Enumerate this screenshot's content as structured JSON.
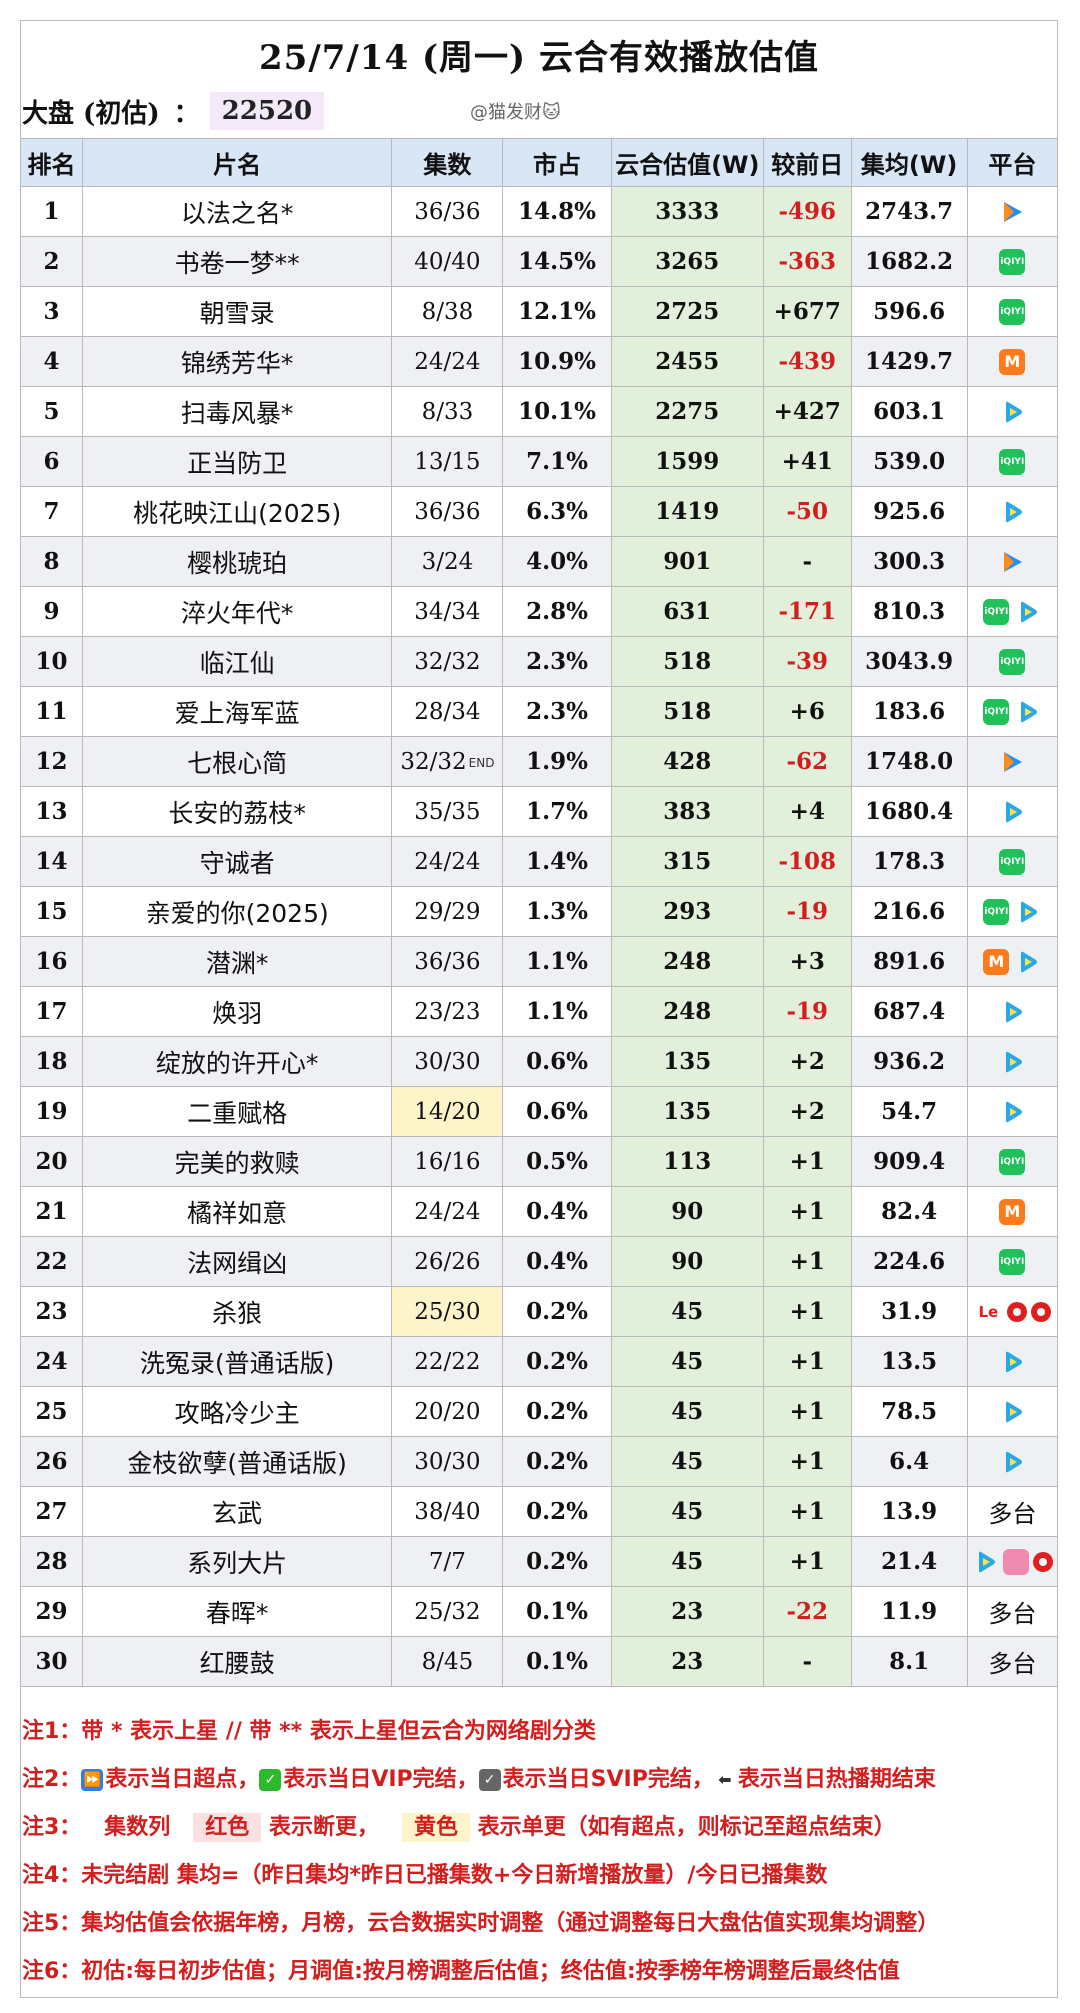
{
  "title": "25/7/14 (周一) 云合有效播放估值",
  "market_label": "大盘 (初估)",
  "market_sep": "：",
  "market_value": "22520",
  "watermark": "@猫发财🐱",
  "headers": [
    "排名",
    "片名",
    "集数",
    "市占",
    "云合估值(W)",
    "较前日",
    "集均(W)",
    "平台"
  ],
  "rows": [
    {
      "rank": "1",
      "name": "以法之名*",
      "eps": "36/36",
      "share": "14.8%",
      "est": "3333",
      "chg": "-496",
      "avg": "2743.7",
      "platforms": [
        "tencent"
      ]
    },
    {
      "rank": "2",
      "name": "书卷一梦**",
      "eps": "40/40",
      "share": "14.5%",
      "est": "3265",
      "chg": "-363",
      "avg": "1682.2",
      "platforms": [
        "iqiyi"
      ]
    },
    {
      "rank": "3",
      "name": "朝雪录",
      "eps": "8/38",
      "share": "12.1%",
      "est": "2725",
      "chg": "+677",
      "avg": "596.6",
      "platforms": [
        "iqiyi"
      ]
    },
    {
      "rank": "4",
      "name": "锦绣芳华*",
      "eps": "24/24",
      "share": "10.9%",
      "est": "2455",
      "chg": "-439",
      "avg": "1429.7",
      "platforms": [
        "mango"
      ]
    },
    {
      "rank": "5",
      "name": "扫毒风暴*",
      "eps": "8/33",
      "share": "10.1%",
      "est": "2275",
      "chg": "+427",
      "avg": "603.1",
      "platforms": [
        "youku"
      ]
    },
    {
      "rank": "6",
      "name": "正当防卫",
      "eps": "13/15",
      "share": "7.1%",
      "est": "1599",
      "chg": "+41",
      "avg": "539.0",
      "platforms": [
        "iqiyi"
      ]
    },
    {
      "rank": "7",
      "name": "桃花映江山(2025)",
      "eps": "36/36",
      "share": "6.3%",
      "est": "1419",
      "chg": "-50",
      "avg": "925.6",
      "platforms": [
        "youku"
      ]
    },
    {
      "rank": "8",
      "name": "樱桃琥珀",
      "eps": "3/24",
      "share": "4.0%",
      "est": "901",
      "chg": "-",
      "avg": "300.3",
      "platforms": [
        "tencent"
      ]
    },
    {
      "rank": "9",
      "name": "淬火年代*",
      "eps": "34/34",
      "share": "2.8%",
      "est": "631",
      "chg": "-171",
      "avg": "810.3",
      "platforms": [
        "iqiyi",
        "youku"
      ]
    },
    {
      "rank": "10",
      "name": "临江仙",
      "eps": "32/32",
      "share": "2.3%",
      "est": "518",
      "chg": "-39",
      "avg": "3043.9",
      "platforms": [
        "iqiyi"
      ]
    },
    {
      "rank": "11",
      "name": "爱上海军蓝",
      "eps": "28/34",
      "share": "2.3%",
      "est": "518",
      "chg": "+6",
      "avg": "183.6",
      "platforms": [
        "iqiyi",
        "youku"
      ]
    },
    {
      "rank": "12",
      "name": "七根心简",
      "eps": "32/32",
      "eps_end": "END",
      "share": "1.9%",
      "est": "428",
      "chg": "-62",
      "avg": "1748.0",
      "platforms": [
        "tencent"
      ]
    },
    {
      "rank": "13",
      "name": "长安的荔枝*",
      "eps": "35/35",
      "share": "1.7%",
      "est": "383",
      "chg": "+4",
      "avg": "1680.4",
      "platforms": [
        "youku"
      ]
    },
    {
      "rank": "14",
      "name": "守诚者",
      "eps": "24/24",
      "share": "1.4%",
      "est": "315",
      "chg": "-108",
      "avg": "178.3",
      "platforms": [
        "iqiyi"
      ]
    },
    {
      "rank": "15",
      "name": "亲爱的你(2025)",
      "eps": "29/29",
      "share": "1.3%",
      "est": "293",
      "chg": "-19",
      "avg": "216.6",
      "platforms": [
        "iqiyi",
        "youku"
      ]
    },
    {
      "rank": "16",
      "name": "潜渊*",
      "eps": "36/36",
      "share": "1.1%",
      "est": "248",
      "chg": "+3",
      "avg": "891.6",
      "platforms": [
        "mango",
        "youku"
      ]
    },
    {
      "rank": "17",
      "name": "焕羽",
      "eps": "23/23",
      "share": "1.1%",
      "est": "248",
      "chg": "-19",
      "avg": "687.4",
      "platforms": [
        "youku"
      ]
    },
    {
      "rank": "18",
      "name": "绽放的许开心*",
      "eps": "30/30",
      "share": "0.6%",
      "est": "135",
      "chg": "+2",
      "avg": "936.2",
      "platforms": [
        "youku"
      ]
    },
    {
      "rank": "19",
      "name": "二重赋格",
      "eps": "14/20",
      "eps_hl": true,
      "share": "0.6%",
      "est": "135",
      "chg": "+2",
      "avg": "54.7",
      "platforms": [
        "youku"
      ]
    },
    {
      "rank": "20",
      "name": "完美的救赎",
      "eps": "16/16",
      "share": "0.5%",
      "est": "113",
      "chg": "+1",
      "avg": "909.4",
      "platforms": [
        "iqiyi"
      ]
    },
    {
      "rank": "21",
      "name": "橘祥如意",
      "eps": "24/24",
      "share": "0.4%",
      "est": "90",
      "chg": "+1",
      "avg": "82.4",
      "platforms": [
        "mango"
      ]
    },
    {
      "rank": "22",
      "name": "法网缉凶",
      "eps": "26/26",
      "share": "0.4%",
      "est": "90",
      "chg": "+1",
      "avg": "224.6",
      "platforms": [
        "iqiyi"
      ]
    },
    {
      "rank": "23",
      "name": "杀狼",
      "eps": "25/30",
      "eps_hl": true,
      "share": "0.2%",
      "est": "45",
      "chg": "+1",
      "avg": "31.9",
      "platforms": [
        "le",
        "redcircle",
        "redcircle"
      ]
    },
    {
      "rank": "24",
      "name": "洗冤录(普通话版)",
      "eps": "22/22",
      "share": "0.2%",
      "est": "45",
      "chg": "+1",
      "avg": "13.5",
      "platforms": [
        "youku"
      ]
    },
    {
      "rank": "25",
      "name": "攻略冷少主",
      "eps": "20/20",
      "share": "0.2%",
      "est": "45",
      "chg": "+1",
      "avg": "78.5",
      "platforms": [
        "youku"
      ]
    },
    {
      "rank": "26",
      "name": "金枝欲孽(普通话版)",
      "eps": "30/30",
      "share": "0.2%",
      "est": "45",
      "chg": "+1",
      "avg": "6.4",
      "platforms": [
        "youku"
      ]
    },
    {
      "rank": "27",
      "name": "玄武",
      "eps": "38/40",
      "share": "0.2%",
      "est": "45",
      "chg": "+1",
      "avg": "13.9",
      "platform_text": "多台"
    },
    {
      "rank": "28",
      "name": "系列大片",
      "eps": "7/7",
      "share": "0.2%",
      "est": "45",
      "chg": "+1",
      "avg": "21.4",
      "platforms": [
        "youku",
        "bili",
        "redcircle"
      ]
    },
    {
      "rank": "29",
      "name": "春晖*",
      "eps": "25/32",
      "share": "0.1%",
      "est": "23",
      "chg": "-22",
      "avg": "11.9",
      "platform_text": "多台"
    },
    {
      "rank": "30",
      "name": "红腰鼓",
      "eps": "8/45",
      "share": "0.1%",
      "est": "23",
      "chg": "-",
      "avg": "8.1",
      "platform_text": "多台"
    }
  ],
  "notes": {
    "n1": "注1：带 * 表示上星 // 带 ** 表示上星但云合为网络剧分类",
    "n2_prefix": "注2：",
    "n2_a": "表示当日超点，",
    "n2_b": "表示当日VIP完结，",
    "n2_c": "表示当日SVIP完结，",
    "n2_d": "表示当日热播期结束",
    "n3_prefix": "注3：",
    "n3_a": "集数列",
    "n3_red": "红色",
    "n3_b": "表示断更，",
    "n3_yellow": "黄色",
    "n3_c": "表示单更（如有超点，则标记至超点结束）",
    "n4": "注4：未完结剧 集均=（昨日集均*昨日已播集数+今日新增播放量）/今日已播集数",
    "n5": "注5：集均估值会依据年榜，月榜，云合数据实时调整（通过调整每日大盘估值实现集均调整）",
    "n6": "注6：初估:每日初步估值；月调值:按月榜调整后估值；终估值:按季榜年榜调整后最终估值"
  },
  "colors": {
    "header_bg": "#d9e6f5",
    "est_bg": "#e2efda",
    "neg": "#d21e1e",
    "highlight_yellow": "#fdf5c9",
    "market_bg": "#f3e9f8"
  }
}
